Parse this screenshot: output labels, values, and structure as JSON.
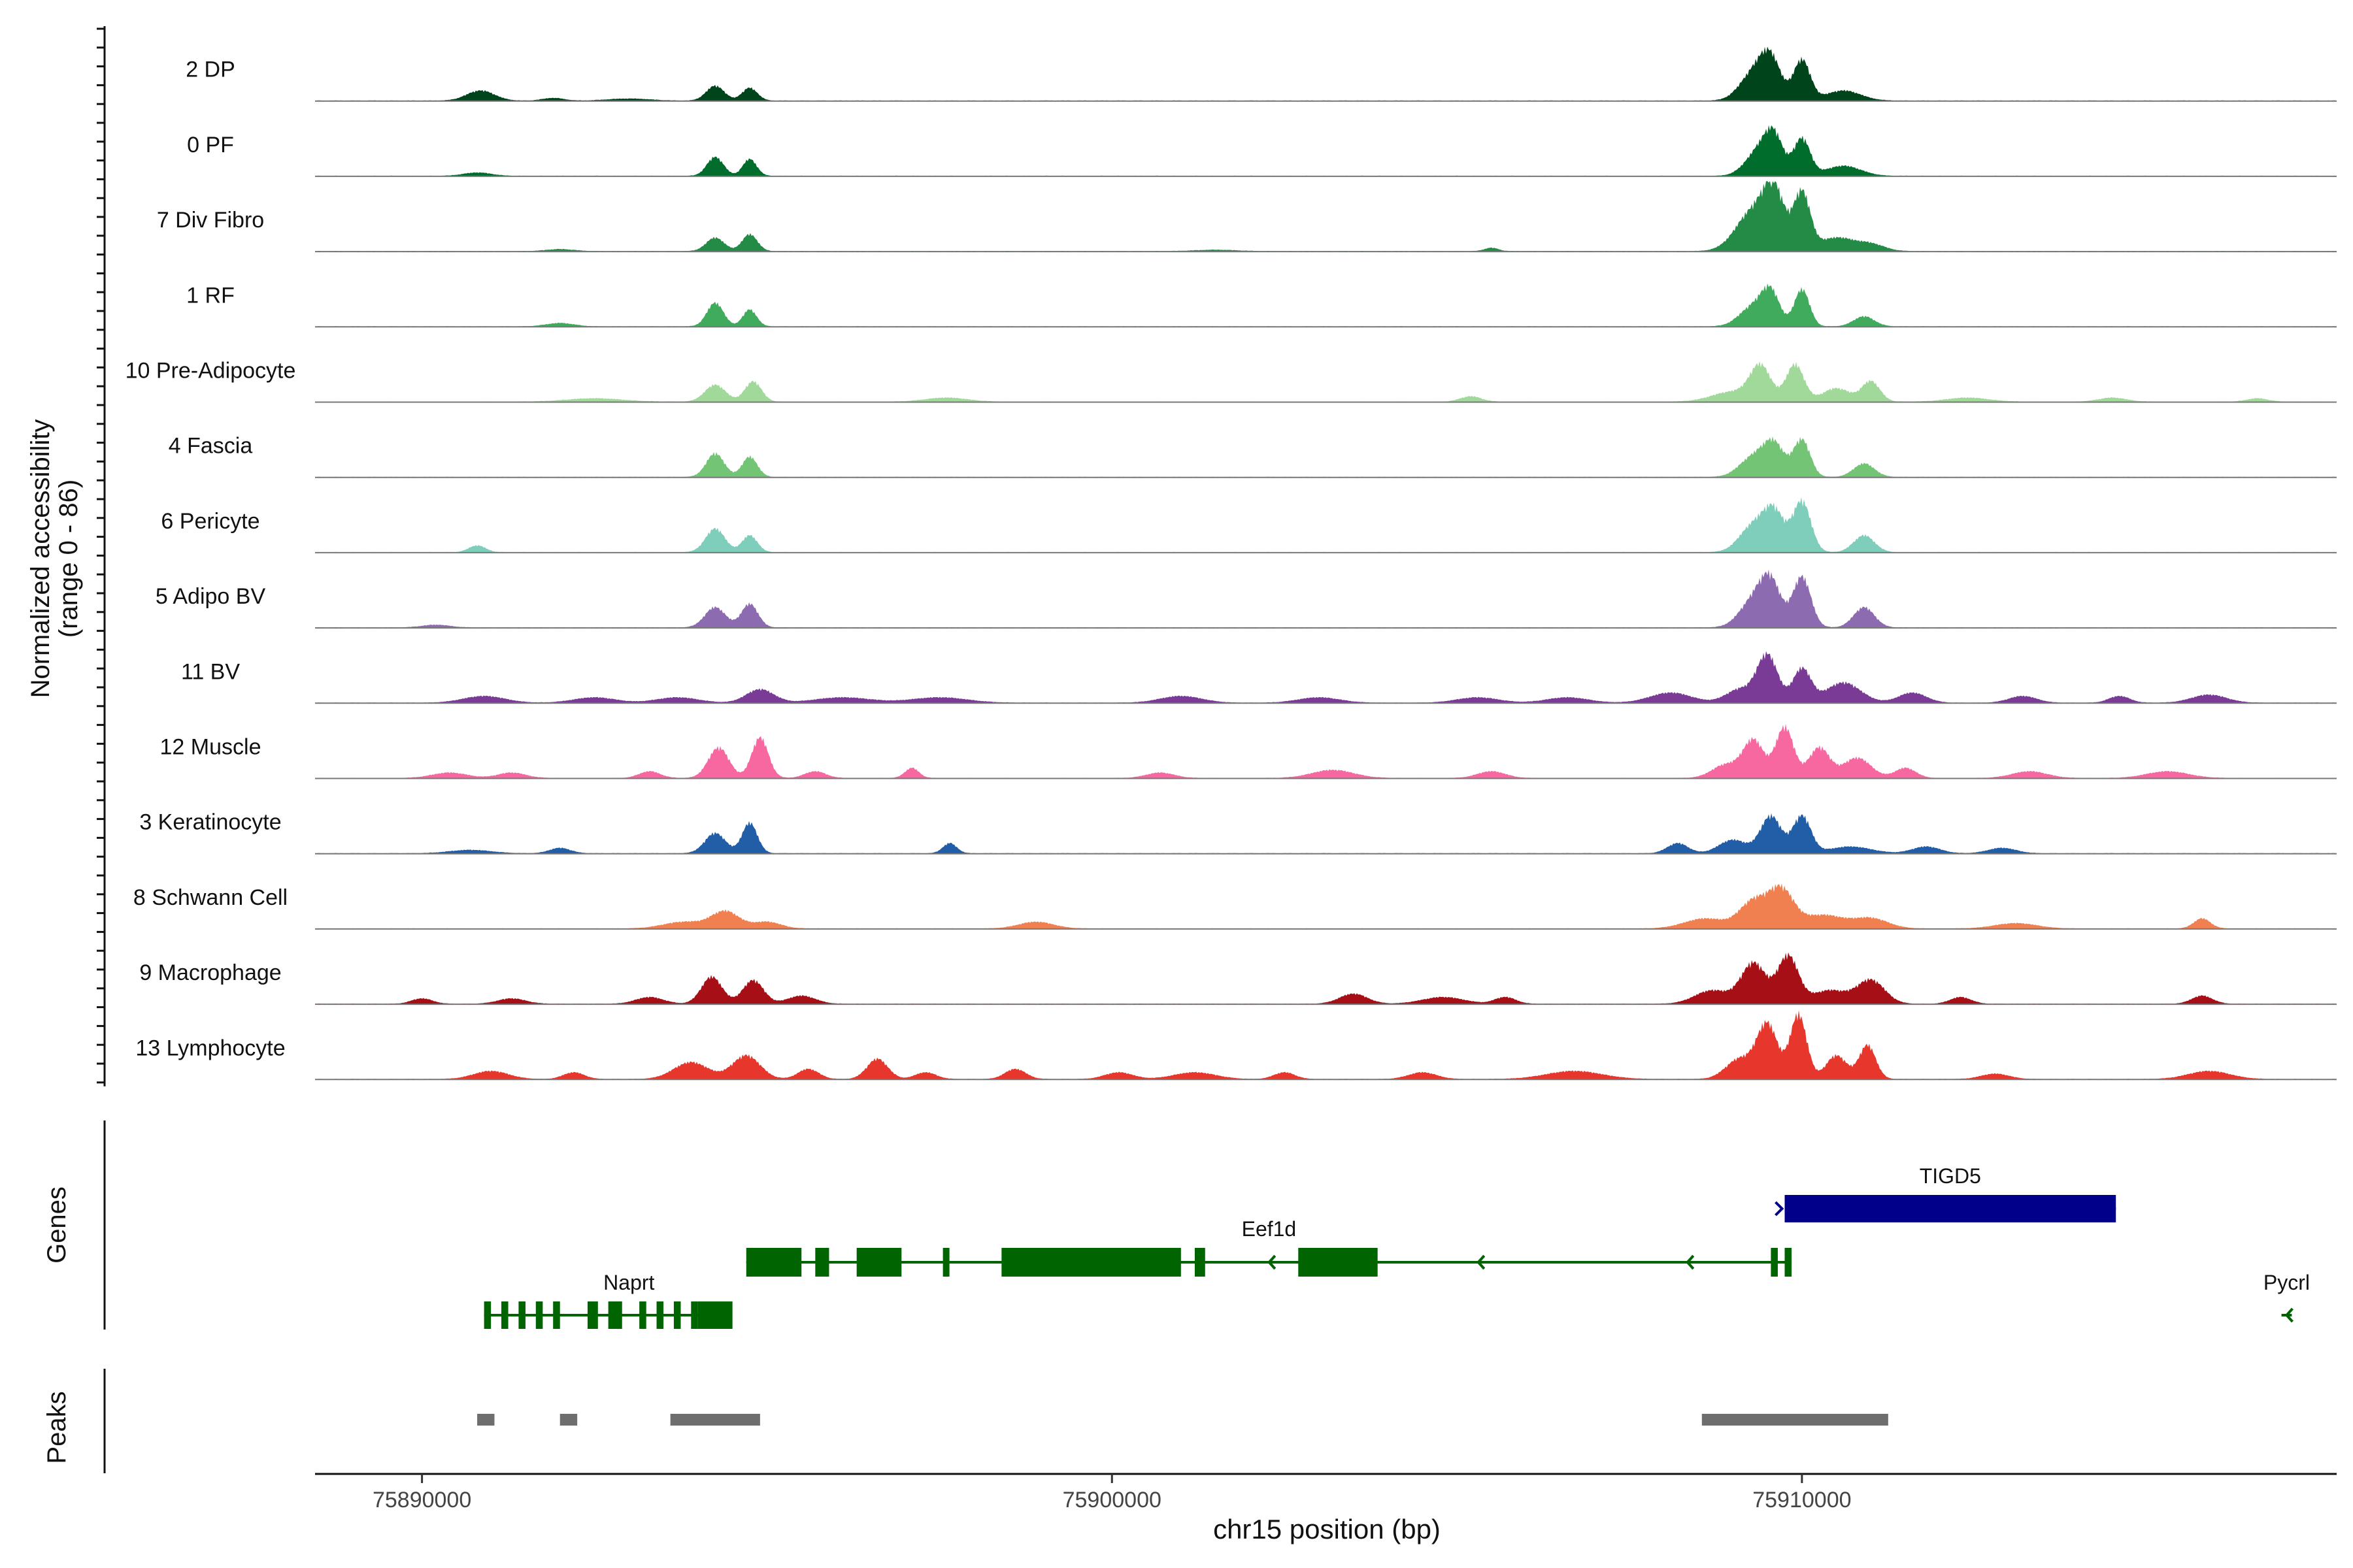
{
  "chart_data": {
    "type": "area",
    "title": "",
    "xlabel": "chr15 position (bp)",
    "ylabel_line1": "Normalized accessibility",
    "ylabel_line2": "(range 0 - 86)",
    "xlim": [
      75888450,
      75917750
    ],
    "x_ticks": [
      {
        "value": 75890000,
        "label": "75890000"
      },
      {
        "value": 75900000,
        "label": "75900000"
      },
      {
        "value": 75910000,
        "label": "75910000"
      }
    ],
    "tracks": [
      {
        "name": "2 DP",
        "color": "#00441b",
        "peaks": [
          [
            75890850,
            0.15,
            200
          ],
          [
            75894250,
            0.22,
            130
          ],
          [
            75894750,
            0.19,
            110
          ],
          [
            75909300,
            0.4,
            200
          ],
          [
            75909550,
            0.55,
            150
          ],
          [
            75910000,
            0.6,
            120
          ],
          [
            75910600,
            0.15,
            250
          ],
          [
            75891900,
            0.04,
            150
          ],
          [
            75893000,
            0.03,
            300
          ]
        ]
      },
      {
        "name": "0 PF",
        "color": "#006d2c",
        "peaks": [
          [
            75890800,
            0.05,
            200
          ],
          [
            75894250,
            0.28,
            120
          ],
          [
            75894750,
            0.25,
            100
          ],
          [
            75909400,
            0.4,
            200
          ],
          [
            75909600,
            0.45,
            130
          ],
          [
            75910000,
            0.55,
            120
          ],
          [
            75910600,
            0.15,
            250
          ]
        ]
      },
      {
        "name": "7 Div Fibro",
        "color": "#238b45",
        "peaks": [
          [
            75892000,
            0.03,
            200
          ],
          [
            75894250,
            0.2,
            130
          ],
          [
            75894750,
            0.25,
            110
          ],
          [
            75909300,
            0.6,
            250
          ],
          [
            75909600,
            0.75,
            150
          ],
          [
            75910000,
            0.85,
            120
          ],
          [
            75910500,
            0.2,
            250
          ],
          [
            75911000,
            0.1,
            200
          ],
          [
            75901500,
            0.02,
            300
          ],
          [
            75905500,
            0.05,
            100
          ]
        ]
      },
      {
        "name": "1 RF",
        "color": "#41ab5d",
        "peaks": [
          [
            75892000,
            0.05,
            200
          ],
          [
            75894250,
            0.35,
            120
          ],
          [
            75894750,
            0.25,
            100
          ],
          [
            75909300,
            0.3,
            200
          ],
          [
            75909550,
            0.45,
            130
          ],
          [
            75910000,
            0.55,
            110
          ],
          [
            75910900,
            0.15,
            150
          ]
        ]
      },
      {
        "name": "10 Pre-Adipocyte",
        "color": "#a1d99b",
        "peaks": [
          [
            75892500,
            0.05,
            400
          ],
          [
            75894250,
            0.25,
            150
          ],
          [
            75894800,
            0.3,
            120
          ],
          [
            75897600,
            0.06,
            300
          ],
          [
            75905200,
            0.08,
            150
          ],
          [
            75909000,
            0.15,
            300
          ],
          [
            75909400,
            0.5,
            150
          ],
          [
            75909900,
            0.55,
            130
          ],
          [
            75910500,
            0.2,
            200
          ],
          [
            75911000,
            0.3,
            130
          ],
          [
            75912400,
            0.06,
            300
          ],
          [
            75914500,
            0.06,
            200
          ],
          [
            75916600,
            0.05,
            150
          ]
        ]
      },
      {
        "name": "4 Fascia",
        "color": "#74c476",
        "peaks": [
          [
            75894250,
            0.35,
            130
          ],
          [
            75894750,
            0.3,
            110
          ],
          [
            75909300,
            0.3,
            200
          ],
          [
            75909600,
            0.45,
            150
          ],
          [
            75910000,
            0.55,
            120
          ],
          [
            75910900,
            0.2,
            150
          ]
        ]
      },
      {
        "name": "6 Pericyte",
        "color": "#7fcdbb",
        "peaks": [
          [
            75890800,
            0.1,
            120
          ],
          [
            75894250,
            0.35,
            140
          ],
          [
            75894750,
            0.25,
            110
          ],
          [
            75909300,
            0.4,
            200
          ],
          [
            75909600,
            0.55,
            150
          ],
          [
            75910000,
            0.75,
            130
          ],
          [
            75910900,
            0.25,
            150
          ]
        ]
      },
      {
        "name": "5 Adipo BV",
        "color": "#8c6bb1",
        "peaks": [
          [
            75894250,
            0.3,
            150
          ],
          [
            75894750,
            0.35,
            120
          ],
          [
            75909300,
            0.4,
            200
          ],
          [
            75909550,
            0.6,
            150
          ],
          [
            75910000,
            0.75,
            130
          ],
          [
            75910900,
            0.3,
            150
          ],
          [
            75890200,
            0.04,
            200
          ]
        ]
      },
      {
        "name": "11 BV",
        "color": "#7a3b96",
        "peaks": [
          [
            75890900,
            0.1,
            300
          ],
          [
            75892500,
            0.08,
            300
          ],
          [
            75893700,
            0.08,
            300
          ],
          [
            75894900,
            0.2,
            200
          ],
          [
            75896100,
            0.08,
            400
          ],
          [
            75897500,
            0.08,
            400
          ],
          [
            75901000,
            0.1,
            300
          ],
          [
            75903000,
            0.08,
            300
          ],
          [
            75905300,
            0.08,
            300
          ],
          [
            75906600,
            0.08,
            300
          ],
          [
            75908100,
            0.15,
            300
          ],
          [
            75909100,
            0.2,
            200
          ],
          [
            75909500,
            0.7,
            150
          ],
          [
            75910000,
            0.5,
            130
          ],
          [
            75910600,
            0.3,
            250
          ],
          [
            75911600,
            0.15,
            200
          ],
          [
            75913200,
            0.1,
            200
          ],
          [
            75914600,
            0.1,
            150
          ],
          [
            75915900,
            0.12,
            250
          ]
        ]
      },
      {
        "name": "12 Muscle",
        "color": "#f768a1",
        "peaks": [
          [
            75890400,
            0.08,
            250
          ],
          [
            75891300,
            0.08,
            200
          ],
          [
            75893300,
            0.1,
            150
          ],
          [
            75894300,
            0.45,
            150
          ],
          [
            75894900,
            0.6,
            120
          ],
          [
            75895700,
            0.1,
            150
          ],
          [
            75897100,
            0.15,
            100
          ],
          [
            75900700,
            0.08,
            200
          ],
          [
            75903200,
            0.12,
            300
          ],
          [
            75905500,
            0.1,
            200
          ],
          [
            75908900,
            0.2,
            200
          ],
          [
            75909300,
            0.55,
            150
          ],
          [
            75909750,
            0.75,
            130
          ],
          [
            75910250,
            0.45,
            150
          ],
          [
            75910800,
            0.3,
            200
          ],
          [
            75911500,
            0.15,
            150
          ],
          [
            75913300,
            0.1,
            250
          ],
          [
            75915300,
            0.1,
            300
          ]
        ]
      },
      {
        "name": "3 Keratinocyte",
        "color": "#225ea8",
        "peaks": [
          [
            75890700,
            0.05,
            300
          ],
          [
            75892000,
            0.08,
            150
          ],
          [
            75894250,
            0.3,
            150
          ],
          [
            75894750,
            0.45,
            110
          ],
          [
            75897650,
            0.15,
            100
          ],
          [
            75908200,
            0.15,
            150
          ],
          [
            75909000,
            0.2,
            200
          ],
          [
            75909550,
            0.55,
            150
          ],
          [
            75910000,
            0.55,
            130
          ],
          [
            75910700,
            0.1,
            300
          ],
          [
            75911800,
            0.1,
            200
          ],
          [
            75912900,
            0.08,
            200
          ]
        ]
      },
      {
        "name": "8 Schwann Cell",
        "color": "#f08050",
        "peaks": [
          [
            75893800,
            0.1,
            300
          ],
          [
            75894400,
            0.25,
            200
          ],
          [
            75895000,
            0.1,
            200
          ],
          [
            75898900,
            0.1,
            250
          ],
          [
            75908600,
            0.15,
            300
          ],
          [
            75909300,
            0.4,
            200
          ],
          [
            75909700,
            0.55,
            180
          ],
          [
            75910300,
            0.2,
            300
          ],
          [
            75911000,
            0.15,
            250
          ],
          [
            75913100,
            0.08,
            300
          ],
          [
            75915800,
            0.15,
            120
          ]
        ]
      },
      {
        "name": "9 Macrophage",
        "color": "#a50f15",
        "peaks": [
          [
            75890000,
            0.08,
            150
          ],
          [
            75891300,
            0.08,
            200
          ],
          [
            75893300,
            0.1,
            200
          ],
          [
            75894200,
            0.4,
            150
          ],
          [
            75894800,
            0.35,
            150
          ],
          [
            75895500,
            0.12,
            200
          ],
          [
            75903500,
            0.15,
            200
          ],
          [
            75904800,
            0.1,
            300
          ],
          [
            75905700,
            0.1,
            150
          ],
          [
            75908700,
            0.2,
            250
          ],
          [
            75909300,
            0.6,
            180
          ],
          [
            75909800,
            0.7,
            150
          ],
          [
            75910400,
            0.2,
            250
          ],
          [
            75911000,
            0.35,
            200
          ],
          [
            75912300,
            0.1,
            150
          ],
          [
            75915800,
            0.12,
            150
          ]
        ]
      },
      {
        "name": "13 Lymphocyte",
        "color": "#e7372d",
        "peaks": [
          [
            75891000,
            0.12,
            250
          ],
          [
            75892200,
            0.1,
            150
          ],
          [
            75893900,
            0.25,
            250
          ],
          [
            75894700,
            0.35,
            200
          ],
          [
            75895600,
            0.15,
            150
          ],
          [
            75896600,
            0.3,
            150
          ],
          [
            75897300,
            0.1,
            150
          ],
          [
            75898600,
            0.15,
            150
          ],
          [
            75900100,
            0.1,
            200
          ],
          [
            75901200,
            0.1,
            300
          ],
          [
            75902500,
            0.1,
            150
          ],
          [
            75904500,
            0.1,
            200
          ],
          [
            75906700,
            0.12,
            400
          ],
          [
            75909100,
            0.3,
            200
          ],
          [
            75909500,
            0.8,
            150
          ],
          [
            75909950,
            0.95,
            120
          ],
          [
            75910500,
            0.35,
            150
          ],
          [
            75910950,
            0.5,
            120
          ],
          [
            75912800,
            0.08,
            200
          ],
          [
            75915900,
            0.12,
            300
          ]
        ]
      }
    ],
    "genes_label": "Genes",
    "genes": [
      {
        "name": "TIGD5",
        "color": "#00008b",
        "start": 75909750,
        "end": 75914550,
        "strand": "+",
        "row": 0,
        "exons": [
          [
            75909750,
            75914550
          ]
        ]
      },
      {
        "name": "Eef1d",
        "color": "#006400",
        "start": 75894700,
        "end": 75909850,
        "strand": "-",
        "row": 1,
        "exons": [
          [
            75894700,
            75895500
          ],
          [
            75895700,
            75895900
          ],
          [
            75896300,
            75896950
          ],
          [
            75897550,
            75897600
          ],
          [
            75898400,
            75901000
          ],
          [
            75901200,
            75901350
          ],
          [
            75902700,
            75903850
          ],
          [
            75909550,
            75909650
          ],
          [
            75909750,
            75909850
          ]
        ]
      },
      {
        "name": "Naprt",
        "color": "#006400",
        "start": 75890900,
        "end": 75894400,
        "strand": "-",
        "row": 2,
        "exons": [
          [
            75890900,
            75891000
          ],
          [
            75891150,
            75891250
          ],
          [
            75891400,
            75891500
          ],
          [
            75891650,
            75891750
          ],
          [
            75891900,
            75892000
          ],
          [
            75892400,
            75892550
          ],
          [
            75892700,
            75892900
          ],
          [
            75893150,
            75893250
          ],
          [
            75893400,
            75893500
          ],
          [
            75893650,
            75893750
          ],
          [
            75893900,
            75894000
          ],
          [
            75894000,
            75894500
          ]
        ]
      },
      {
        "name": "Pycrl",
        "color": "#006400",
        "start": 75916950,
        "end": 75917100,
        "strand": "-",
        "row": 2,
        "exons": []
      }
    ],
    "peaks_label": "Peaks",
    "peak_regions": [
      [
        75890800,
        75891050
      ],
      [
        75892000,
        75892250
      ],
      [
        75893600,
        75894900
      ],
      [
        75908550,
        75911250
      ]
    ],
    "peak_color": "#6e6e6e"
  }
}
